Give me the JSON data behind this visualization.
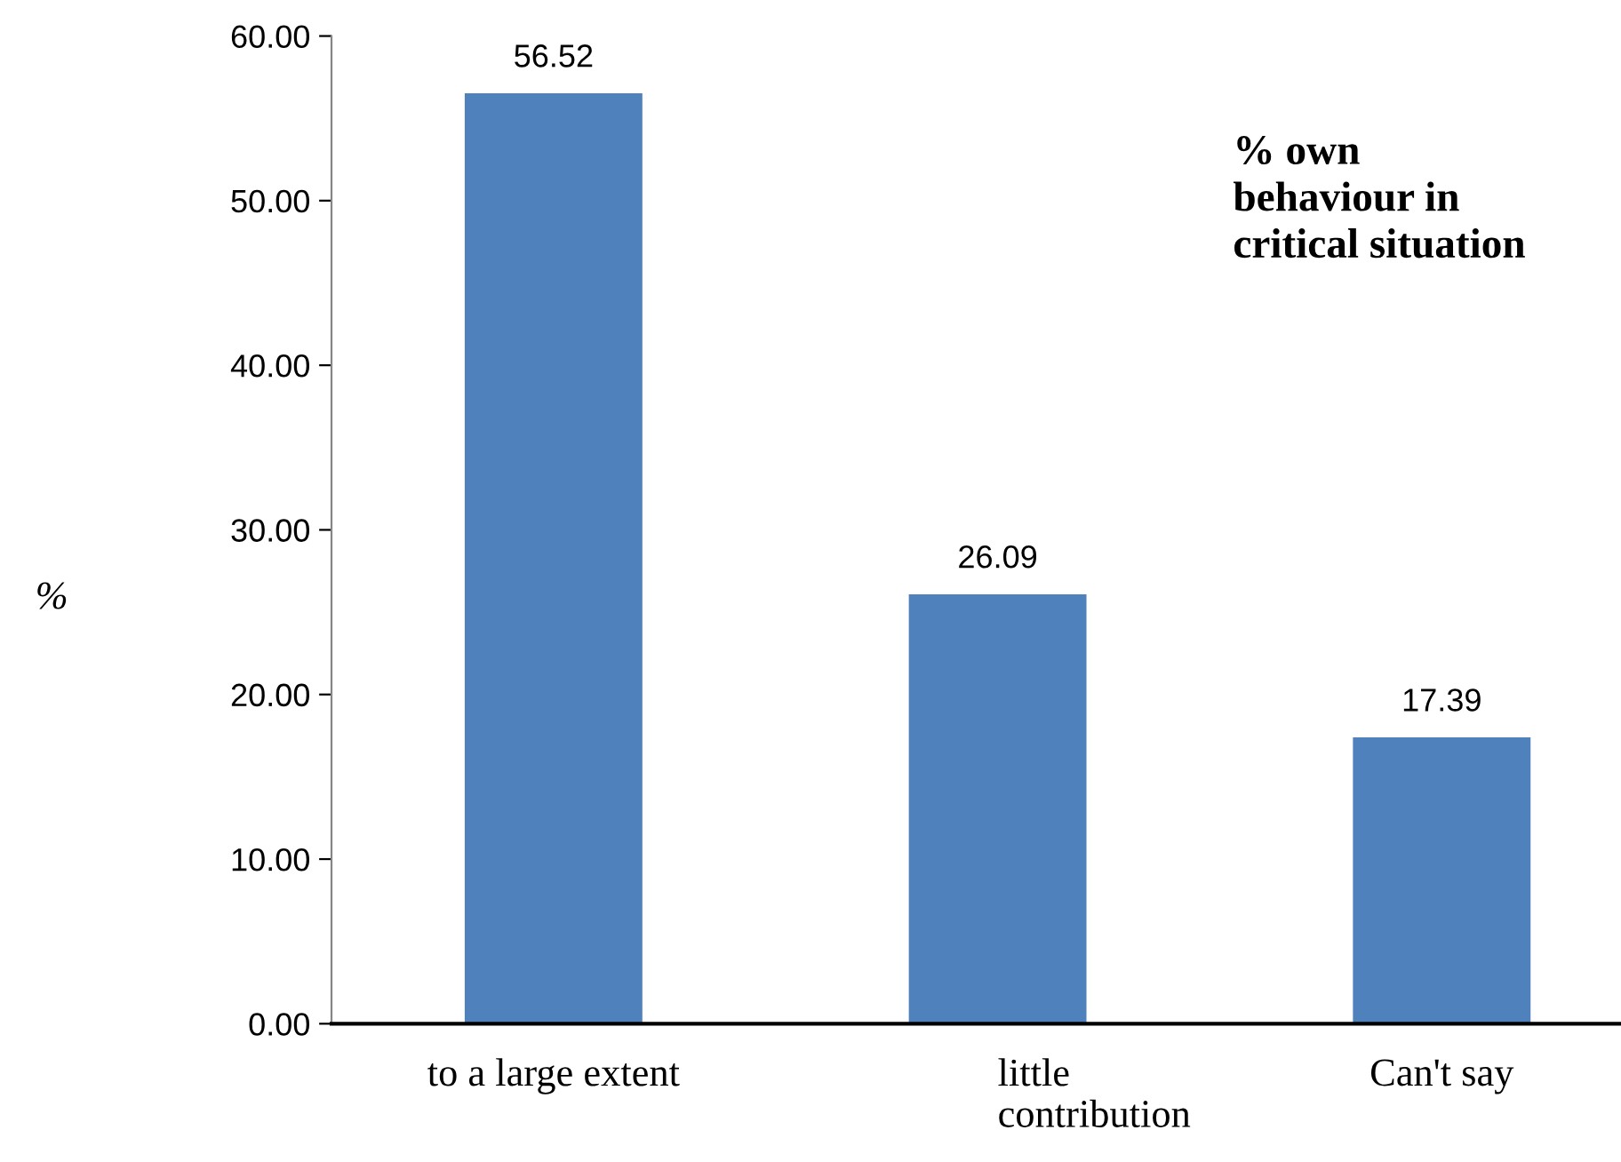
{
  "chart_data": {
    "type": "bar",
    "title": "% own\nbehaviour in\ncritical situation",
    "ylabel": "%",
    "categories": [
      "to a large extent",
      "little\ncontribution",
      "Can't say"
    ],
    "values": [
      56.52,
      26.09,
      17.39
    ],
    "color": "#4f81bd",
    "ylim": [
      0,
      60
    ],
    "yticks": [
      {
        "value": 0,
        "label": "0.00"
      },
      {
        "value": 10,
        "label": "10.00"
      },
      {
        "value": 20,
        "label": "20.00"
      },
      {
        "value": 30,
        "label": "30.00"
      },
      {
        "value": 40,
        "label": "40.00"
      },
      {
        "value": 50,
        "label": "50.00"
      },
      {
        "value": 60,
        "label": "60.00"
      }
    ],
    "data_labels": true,
    "grid": false,
    "legend": false
  }
}
